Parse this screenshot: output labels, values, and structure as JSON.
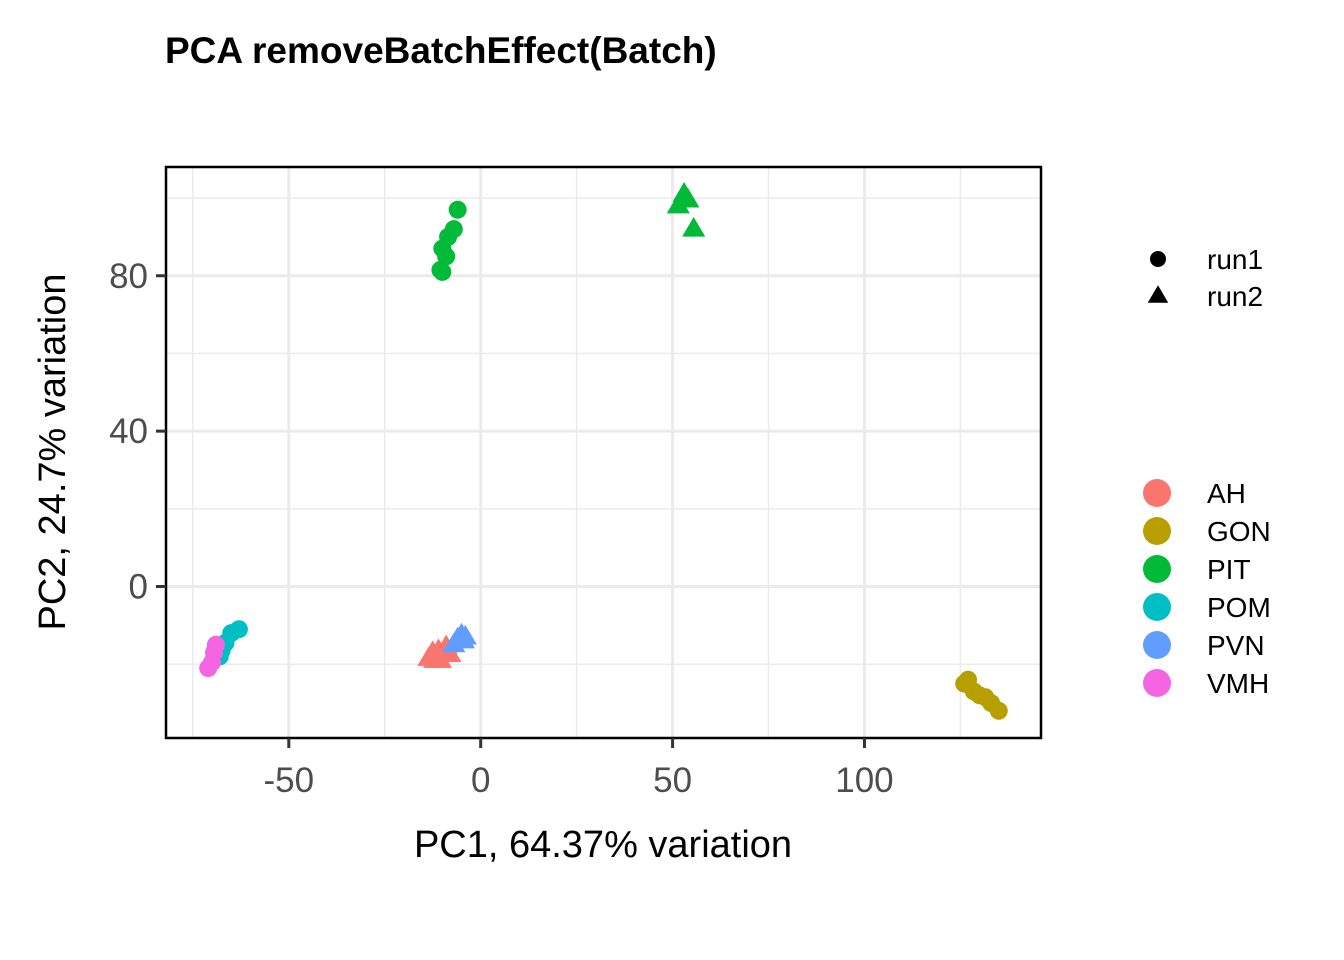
{
  "chart_data": {
    "type": "scatter",
    "title": "PCA removeBatchEffect(Batch)",
    "xlabel": "PC1, 64.37% variation",
    "ylabel": "PC2, 24.7% variation",
    "xlim": [
      -82,
      146
    ],
    "ylim": [
      -39,
      108
    ],
    "x_ticks": [
      -50,
      0,
      50,
      100
    ],
    "x_tick_labels": [
      "-50",
      "0",
      "50",
      "100"
    ],
    "y_ticks": [
      0,
      40,
      80
    ],
    "y_tick_labels": [
      "0",
      "40",
      "80"
    ],
    "grid": true,
    "shape_legend": [
      {
        "label": "run1",
        "shape": "circle"
      },
      {
        "label": "run2",
        "shape": "triangle"
      }
    ],
    "color_legend": [
      {
        "label": "AH",
        "color": "#F8766D"
      },
      {
        "label": "GON",
        "color": "#B79F00"
      },
      {
        "label": "PIT",
        "color": "#00BA38"
      },
      {
        "label": "POM",
        "color": "#00BFC4"
      },
      {
        "label": "PVN",
        "color": "#619CFF"
      },
      {
        "label": "VMH",
        "color": "#F564E3"
      }
    ],
    "series": [
      {
        "group": "AH",
        "batch": "run2",
        "color": "#F8766D",
        "shape": "triangle",
        "points": [
          [
            -13.5,
            -18.5
          ],
          [
            -12,
            -19
          ],
          [
            -11,
            -16.5
          ],
          [
            -10,
            -17.5
          ],
          [
            -9,
            -15.5
          ],
          [
            -8,
            -17.5
          ],
          [
            -12.5,
            -17
          ],
          [
            -10.5,
            -19
          ]
        ]
      },
      {
        "group": "PVN",
        "batch": "run2",
        "color": "#619CFF",
        "shape": "triangle",
        "points": [
          [
            -5,
            -12.5
          ],
          [
            -6,
            -13.5
          ],
          [
            -4.5,
            -14
          ],
          [
            -7,
            -15
          ],
          [
            -4,
            -13
          ]
        ]
      },
      {
        "group": "PIT",
        "batch": "run1",
        "color": "#00BA38",
        "shape": "circle",
        "points": [
          [
            -6,
            97
          ],
          [
            -7,
            92
          ],
          [
            -8.5,
            90
          ],
          [
            -10,
            87
          ],
          [
            -9,
            85
          ],
          [
            -10.5,
            81.5
          ],
          [
            -10,
            81
          ]
        ]
      },
      {
        "group": "PIT",
        "batch": "run2",
        "color": "#00BA38",
        "shape": "triangle",
        "points": [
          [
            53,
            101
          ],
          [
            54,
            99.5
          ],
          [
            51.5,
            98
          ],
          [
            55.5,
            92
          ]
        ]
      },
      {
        "group": "POM",
        "batch": "run1",
        "color": "#00BFC4",
        "shape": "circle",
        "points": [
          [
            -63,
            -11
          ],
          [
            -65,
            -12
          ],
          [
            -66.5,
            -14.5
          ],
          [
            -67.5,
            -16.5
          ],
          [
            -68,
            -18
          ]
        ]
      },
      {
        "group": "VMH",
        "batch": "run1",
        "color": "#F564E3",
        "shape": "circle",
        "points": [
          [
            -69,
            -15
          ],
          [
            -69.5,
            -17
          ],
          [
            -70,
            -19.5
          ],
          [
            -71,
            -21
          ]
        ]
      },
      {
        "group": "GON",
        "batch": "run1",
        "color": "#B79F00",
        "shape": "circle",
        "points": [
          [
            126,
            -25
          ],
          [
            127,
            -24
          ],
          [
            128.5,
            -27
          ],
          [
            130,
            -28
          ],
          [
            131.5,
            -28.5
          ],
          [
            133,
            -30
          ],
          [
            135,
            -32
          ]
        ]
      }
    ]
  }
}
